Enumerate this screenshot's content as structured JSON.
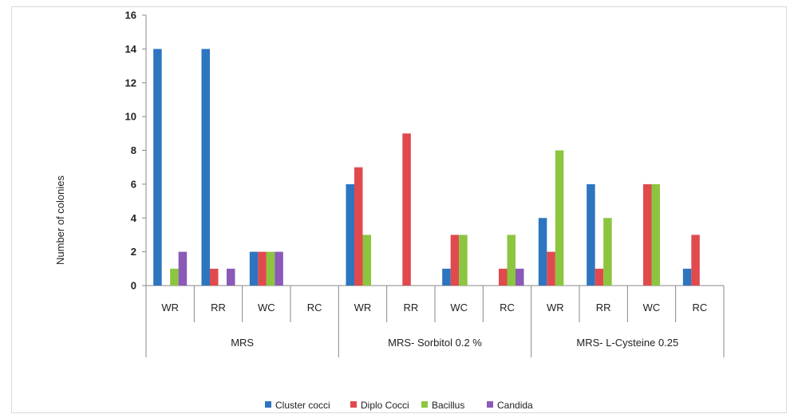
{
  "chart_data": {
    "type": "bar",
    "ylabel": "Number of colonies",
    "ylim": [
      0,
      16
    ],
    "yticks": [
      0,
      2,
      4,
      6,
      8,
      10,
      12,
      14,
      16
    ],
    "grid": false,
    "legend_position": "bottom",
    "groups": [
      {
        "label": "MRS",
        "categories": [
          "WR",
          "RR",
          "WC",
          "RC"
        ]
      },
      {
        "label": "MRS- Sorbitol 0.2 %",
        "categories": [
          "WR",
          "RR",
          "WC",
          "RC"
        ]
      },
      {
        "label": "MRS- L-Cysteine 0.25",
        "categories": [
          "WR",
          "RR",
          "WC",
          "RC"
        ]
      }
    ],
    "categories": [
      "WR",
      "RR",
      "WC",
      "RC",
      "WR",
      "RR",
      "WC",
      "RC",
      "WR",
      "RR",
      "WC",
      "RC"
    ],
    "series": [
      {
        "name": "Cluster cocci",
        "color": "#2e75c0",
        "values": [
          14,
          14,
          2,
          0,
          6,
          0,
          1,
          0,
          4,
          6,
          0,
          1
        ]
      },
      {
        "name": "Diplo Cocci",
        "color": "#e04a4e",
        "values": [
          0,
          1,
          2,
          0,
          7,
          9,
          3,
          1,
          2,
          1,
          6,
          3
        ]
      },
      {
        "name": "Bacillus",
        "color": "#8cc53f",
        "values": [
          1,
          0,
          2,
          0,
          3,
          0,
          3,
          3,
          8,
          4,
          6,
          0
        ]
      },
      {
        "name": "Candida",
        "color": "#8b59b7",
        "values": [
          2,
          1,
          2,
          0,
          0,
          0,
          0,
          1,
          0,
          0,
          0,
          0
        ]
      }
    ]
  }
}
